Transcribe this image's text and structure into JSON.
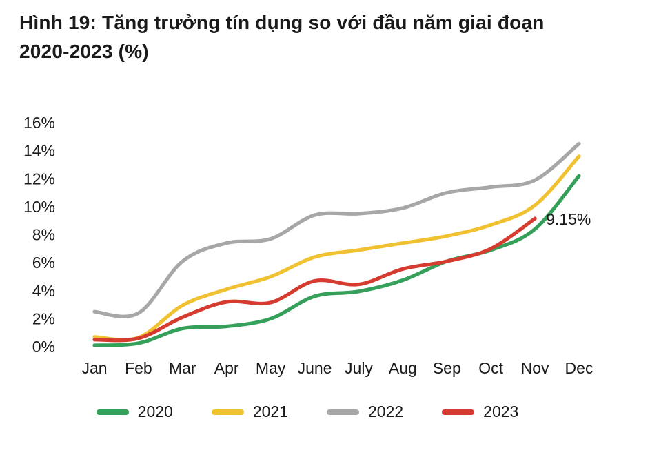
{
  "title": {
    "line1": "Hình 19: Tăng trưởng tín dụng so với đầu năm giai đoạn",
    "line2": "2020-2023 (%)",
    "full": "Hình 19: Tăng trưởng tín dụng so với đầu năm giai đoạn 2020-2023 (%)"
  },
  "chart_data": {
    "type": "line",
    "title": "Hình 19: Tăng trưởng tín dụng so với đầu năm giai đoạn 2020-2023 (%)",
    "categories": [
      "Jan",
      "Feb",
      "Mar",
      "Apr",
      "May",
      "June",
      "July",
      "Aug",
      "Sep",
      "Oct",
      "Nov",
      "Dec"
    ],
    "xlabel": "",
    "ylabel": "",
    "ylim": [
      0,
      16
    ],
    "ytick_step": 2,
    "ytick_suffix": "%",
    "grid": false,
    "legend_position": "bottom",
    "text_color": "#1a1a1a",
    "series": [
      {
        "name": "2020",
        "color": "#34a05a",
        "values": [
          0.1,
          0.25,
          1.3,
          1.45,
          2.0,
          3.6,
          3.95,
          4.75,
          6.1,
          6.9,
          8.4,
          12.2
        ]
      },
      {
        "name": "2021",
        "color": "#f0c232",
        "values": [
          0.7,
          0.65,
          2.95,
          4.1,
          5.0,
          6.4,
          6.9,
          7.4,
          7.9,
          8.7,
          10.1,
          13.6
        ]
      },
      {
        "name": "2022",
        "color": "#a7a7a7",
        "values": [
          2.5,
          2.4,
          6.1,
          7.4,
          7.7,
          9.4,
          9.5,
          9.9,
          11.0,
          11.4,
          11.9,
          14.5
        ]
      },
      {
        "name": "2023",
        "color": "#d63b2f",
        "values": [
          0.5,
          0.6,
          2.1,
          3.2,
          3.15,
          4.7,
          4.45,
          5.55,
          6.1,
          7.0,
          9.15
        ]
      }
    ],
    "annotation": {
      "text": "9.15%",
      "series": "2023",
      "month_index": 10,
      "value": 9.15
    }
  },
  "legend": {
    "items": [
      "2020",
      "2021",
      "2022",
      "2023"
    ]
  }
}
